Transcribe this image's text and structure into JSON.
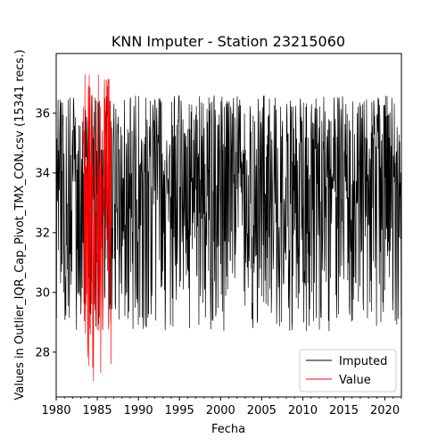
{
  "chart_data": {
    "type": "line",
    "title": "KNN Imputer - Station 23215060",
    "xlabel": "Fecha",
    "ylabel": "Values in Outlier_IQR_Cap_Pivot_TMX_CON.csv (15341 recs.)",
    "xlim": [
      1980,
      2022
    ],
    "ylim": [
      26.5,
      38.0
    ],
    "x_ticks": [
      1980,
      1985,
      1990,
      1995,
      2000,
      2005,
      2010,
      2015,
      2020
    ],
    "x_tick_labels": [
      "1980",
      "1985",
      "1990",
      "1995",
      "2000",
      "2005",
      "2010",
      "2015",
      "2020"
    ],
    "y_ticks": [
      28,
      30,
      32,
      34,
      36
    ],
    "y_tick_labels": [
      "28",
      "30",
      "32",
      "34",
      "36"
    ],
    "legend_position": "lower-right",
    "legend": [
      "Imputed",
      "Value"
    ],
    "series": [
      {
        "name": "Imputed",
        "color": "#000000",
        "x_range": [
          1980.0,
          2022.0
        ],
        "center": 33.4,
        "amplitude": 2.6,
        "min": 28.7,
        "max": 36.6
      },
      {
        "name": "Value",
        "color": "#ff0000",
        "x_range": [
          1983.3,
          1986.7
        ],
        "center": 32.6,
        "amplitude": 3.4,
        "min": 27.0,
        "max": 37.4
      }
    ]
  }
}
